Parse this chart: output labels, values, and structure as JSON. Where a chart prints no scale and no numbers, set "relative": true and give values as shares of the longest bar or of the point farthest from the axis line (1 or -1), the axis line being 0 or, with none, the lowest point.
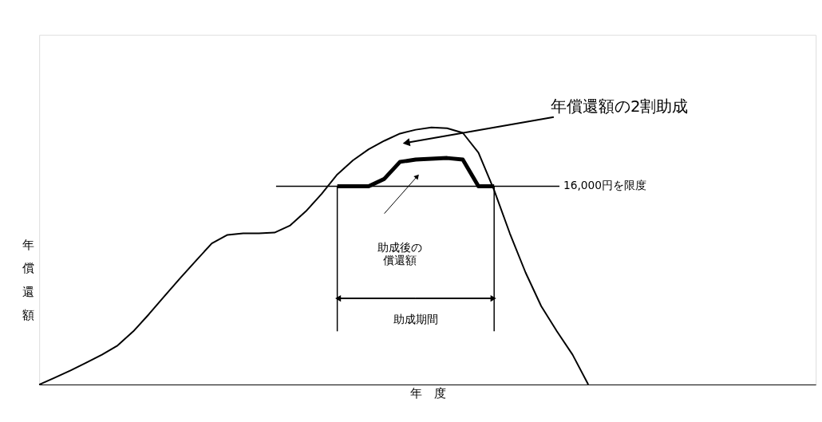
{
  "chart_data": {
    "type": "line",
    "relative": true,
    "xlabel": "年　度",
    "ylabel": "年償還額",
    "categories": [
      null,
      null,
      null,
      null,
      null,
      null,
      null,
      null,
      null,
      null,
      null,
      null,
      null,
      null,
      null,
      null,
      null,
      null,
      null,
      null,
      null,
      null,
      null,
      null,
      null,
      null,
      null,
      null,
      null,
      null,
      null,
      null,
      null,
      null,
      null,
      null
    ],
    "series": [
      {
        "color": "#000000",
        "values": [
          0,
          0.027,
          0.055,
          0.085,
          0.116,
          0.152,
          0.207,
          0.274,
          0.345,
          0.415,
          0.482,
          0.549,
          0.582,
          0.588,
          0.588,
          0.591,
          0.619,
          0.674,
          0.741,
          0.817,
          0.872,
          0.915,
          0.948,
          0.976,
          0.991,
          1.0,
          0.997,
          0.979,
          0.902,
          0.756,
          0.588,
          0.436,
          0.305,
          0.207,
          0.116,
          0
        ]
      },
      {
        "color": "#000000",
        "values": [
          null,
          null,
          null,
          null,
          null,
          null,
          null,
          null,
          null,
          null,
          null,
          null,
          null,
          null,
          null,
          null,
          null,
          null,
          null,
          0.771,
          0.771,
          0.771,
          0.8,
          0.866,
          0.875,
          0.878,
          0.881,
          0.875,
          0.771,
          0.771,
          null,
          null,
          null,
          null,
          null,
          null
        ]
      }
    ],
    "ref_lines": [
      {
        "axis": "y",
        "value": 0.771,
        "label": "16,000円を限度",
        "color": "#000000"
      }
    ],
    "annotations": [
      "年償還額の2割助成",
      "助成後の償還額",
      "助成期間"
    ]
  }
}
